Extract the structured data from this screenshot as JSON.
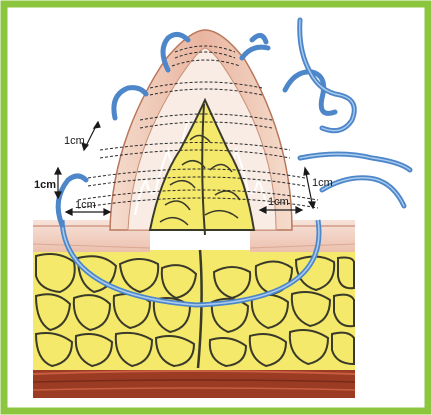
{
  "figure": {
    "border_color": "#8cc63f",
    "fat_color": "#f4e96a",
    "fat_outline": "#3a3a2a",
    "skin_color": "#f3d3c4",
    "muscle_color": "#9b3b24",
    "suture_color": "#4d86c9",
    "suture_highlight": "#a9cbee",
    "measurements": [
      {
        "text": "1cm"
      },
      {
        "text": "1cm"
      },
      {
        "text": "1cm"
      },
      {
        "text": "1cm"
      },
      {
        "text": "1cm"
      }
    ]
  }
}
